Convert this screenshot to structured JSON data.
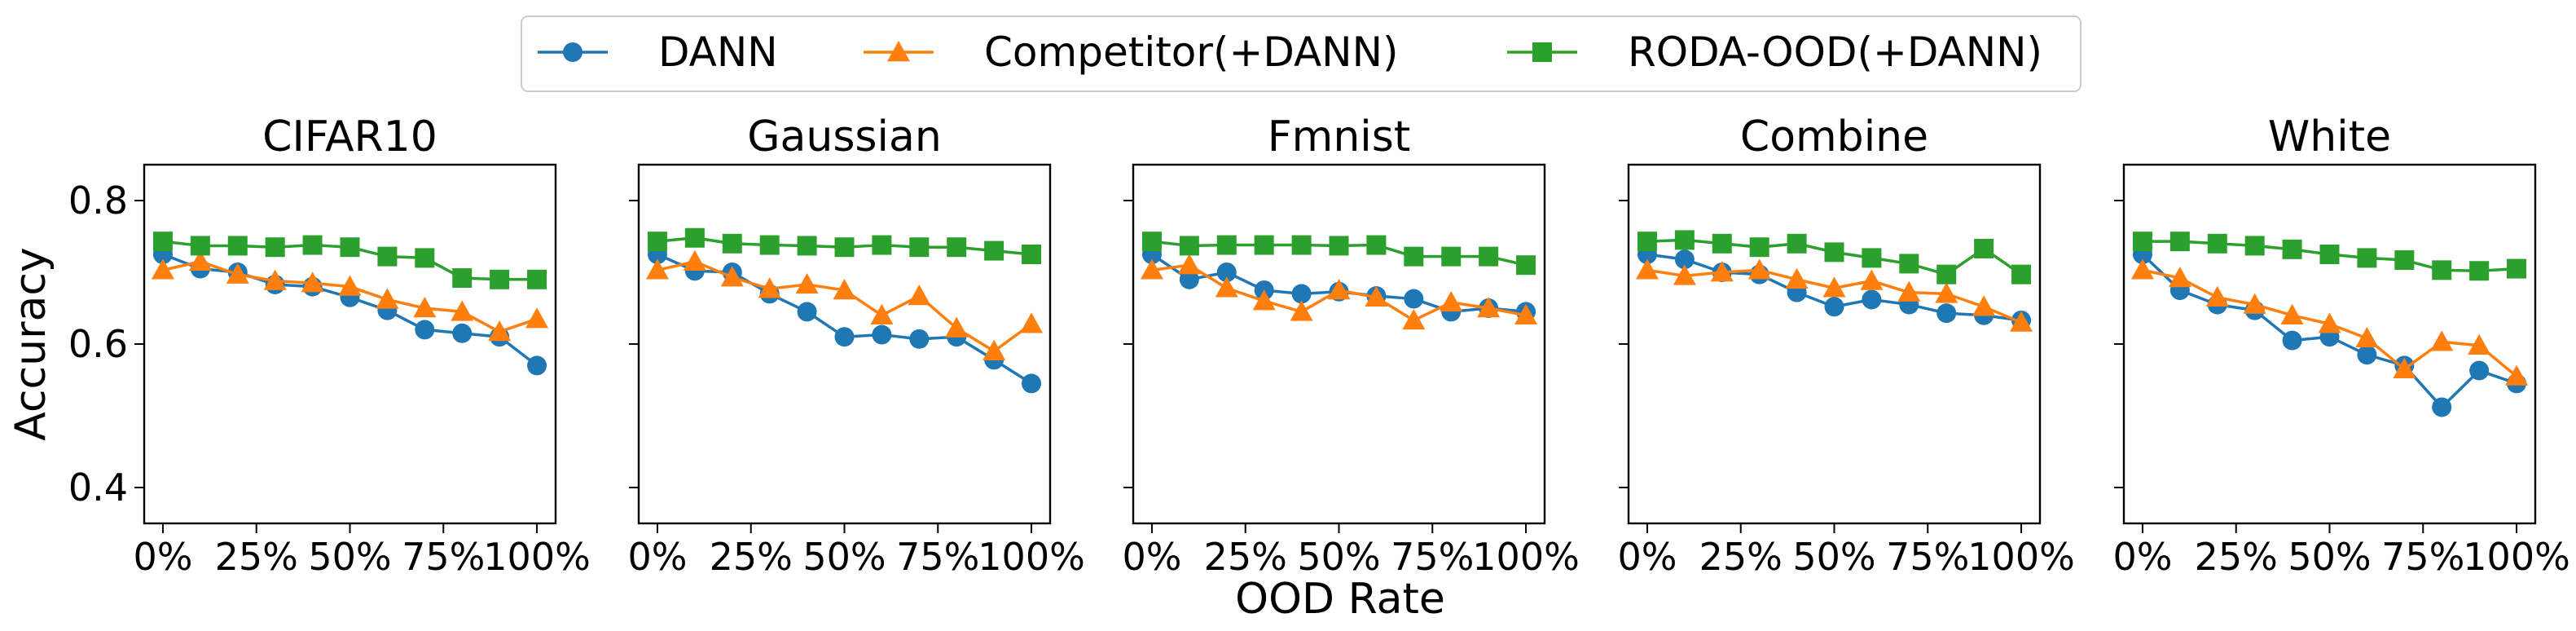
{
  "chart_data": {
    "type": "line",
    "xlabel": "OOD Rate",
    "ylabel": "Accuracy",
    "ylim": [
      0.35,
      0.85
    ],
    "xlim": [
      -0.05,
      1.05
    ],
    "x": [
      0,
      0.1,
      0.2,
      0.3,
      0.4,
      0.5,
      0.6,
      0.7,
      0.8,
      0.9,
      1.0
    ],
    "xticks": [
      0,
      0.25,
      0.5,
      0.75,
      1.0
    ],
    "xtick_labels": [
      "0%",
      "25%",
      "50%",
      "75%",
      "100%"
    ],
    "yticks": [
      0.4,
      0.6,
      0.8
    ],
    "ytick_labels": [
      "0.4",
      "0.6",
      "0.8"
    ],
    "legend_position": "top-center",
    "series_styles": [
      {
        "name": "DANN",
        "color": "#1f77b4",
        "marker": "circle"
      },
      {
        "name": "Competitor(+DANN)",
        "color": "#ff7f0e",
        "marker": "triangle"
      },
      {
        "name": "RODA-OOD(+DANN)",
        "color": "#2ca02c",
        "marker": "square"
      }
    ],
    "panels": [
      {
        "title": "CIFAR10",
        "series": [
          {
            "name": "DANN",
            "values": [
              0.725,
              0.705,
              0.7,
              0.683,
              0.68,
              0.665,
              0.647,
              0.62,
              0.615,
              0.61,
              0.57
            ]
          },
          {
            "name": "Competitor(+DANN)",
            "values": [
              0.703,
              0.715,
              0.697,
              0.688,
              0.685,
              0.68,
              0.662,
              0.65,
              0.645,
              0.617,
              0.635
            ]
          },
          {
            "name": "RODA-OOD(+DANN)",
            "values": [
              0.743,
              0.737,
              0.737,
              0.735,
              0.738,
              0.735,
              0.722,
              0.72,
              0.692,
              0.69,
              0.69
            ]
          }
        ]
      },
      {
        "title": "Gaussian",
        "series": [
          {
            "name": "DANN",
            "values": [
              0.725,
              0.702,
              0.7,
              0.67,
              0.645,
              0.61,
              0.613,
              0.607,
              0.61,
              0.578,
              0.545
            ]
          },
          {
            "name": "Competitor(+DANN)",
            "values": [
              0.703,
              0.715,
              0.693,
              0.677,
              0.683,
              0.675,
              0.64,
              0.667,
              0.622,
              0.59,
              0.628
            ]
          },
          {
            "name": "RODA-OOD(+DANN)",
            "values": [
              0.743,
              0.748,
              0.74,
              0.738,
              0.737,
              0.735,
              0.738,
              0.735,
              0.735,
              0.73,
              0.725
            ]
          }
        ]
      },
      {
        "title": "Fmnist",
        "series": [
          {
            "name": "DANN",
            "values": [
              0.725,
              0.69,
              0.7,
              0.675,
              0.67,
              0.673,
              0.667,
              0.663,
              0.645,
              0.65,
              0.645
            ]
          },
          {
            "name": "Competitor(+DANN)",
            "values": [
              0.703,
              0.71,
              0.678,
              0.66,
              0.645,
              0.675,
              0.665,
              0.633,
              0.658,
              0.65,
              0.64
            ]
          },
          {
            "name": "RODA-OOD(+DANN)",
            "values": [
              0.743,
              0.737,
              0.738,
              0.738,
              0.738,
              0.737,
              0.738,
              0.722,
              0.722,
              0.722,
              0.71
            ]
          }
        ]
      },
      {
        "title": "Combine",
        "series": [
          {
            "name": "DANN",
            "values": [
              0.725,
              0.718,
              0.7,
              0.697,
              0.672,
              0.652,
              0.662,
              0.655,
              0.643,
              0.64,
              0.633
            ]
          },
          {
            "name": "Competitor(+DANN)",
            "values": [
              0.703,
              0.695,
              0.7,
              0.703,
              0.69,
              0.678,
              0.688,
              0.672,
              0.67,
              0.652,
              0.63
            ]
          },
          {
            "name": "RODA-OOD(+DANN)",
            "values": [
              0.743,
              0.745,
              0.74,
              0.735,
              0.74,
              0.728,
              0.72,
              0.712,
              0.697,
              0.733,
              0.697
            ]
          }
        ]
      },
      {
        "title": "White",
        "series": [
          {
            "name": "DANN",
            "values": [
              0.725,
              0.675,
              0.655,
              0.647,
              0.605,
              0.61,
              0.585,
              0.57,
              0.512,
              0.563,
              0.545
            ]
          },
          {
            "name": "Competitor(+DANN)",
            "values": [
              0.703,
              0.692,
              0.665,
              0.655,
              0.64,
              0.628,
              0.608,
              0.565,
              0.603,
              0.598,
              0.555
            ]
          },
          {
            "name": "RODA-OOD(+DANN)",
            "values": [
              0.743,
              0.743,
              0.74,
              0.737,
              0.732,
              0.725,
              0.72,
              0.717,
              0.703,
              0.702,
              0.705
            ]
          }
        ]
      }
    ]
  }
}
